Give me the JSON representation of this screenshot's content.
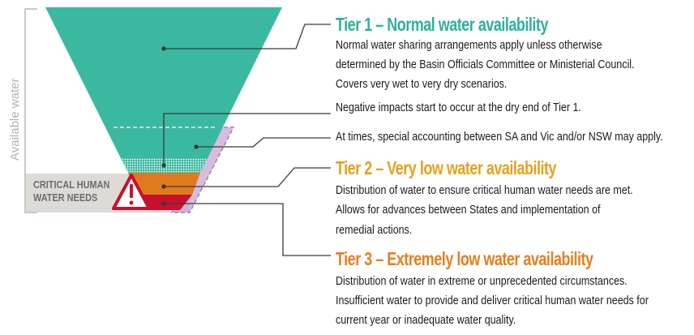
{
  "axis_label": "Available water",
  "critical": {
    "line1": "CRITICAL HUMAN",
    "line2": "WATER NEEDS",
    "icon": "warning-triangle-icon"
  },
  "tier1": {
    "heading": "Tier 1 – Normal water availability",
    "lines": [
      "Normal water sharing arrangements apply unless otherwise",
      "determined by the Basin Officials Committee or Ministerial Council.",
      "Covers very wet to very dry scenarios."
    ],
    "negative_impacts": "Negative impacts start to occur at the dry end of Tier 1.",
    "special_accounting": "At times, special accounting between SA and Vic and/or NSW may apply."
  },
  "tier2": {
    "heading": "Tier 2 – Very low water availability",
    "lines": [
      "Distribution of water to ensure critical human water needs are met.",
      "Allows for advances between States and implementation of",
      "remedial actions."
    ]
  },
  "tier3": {
    "heading": "Tier 3 – Extremely low water availability",
    "lines": [
      "Distribution of water in extreme or unprecedented circumstances.",
      "Insufficient water to provide and deliver critical human water needs for",
      "current year or inadequate water quality."
    ]
  },
  "colors": {
    "tier1": "#3ab9a0",
    "tier1_heading": "#2fb09a",
    "tier2": "#e07a1f",
    "tier2_heading": "#e2a21e",
    "tier3": "#c8102e",
    "tier3_heading": "#e57f1c",
    "special_accounting": "#c9a6d2",
    "critical_band": "#dedad6",
    "leader_line": "#3a3a3a",
    "axis_bracket": "#c8c8c8"
  }
}
